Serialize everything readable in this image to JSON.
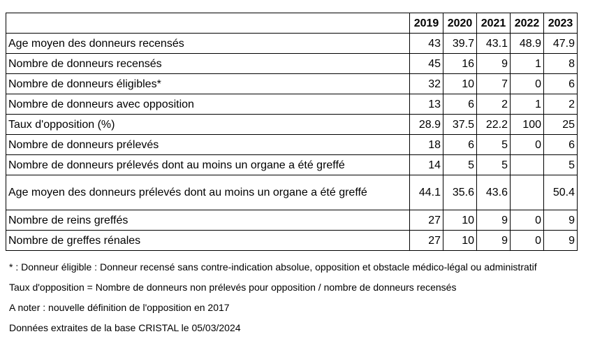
{
  "table": {
    "years": [
      "2019",
      "2020",
      "2021",
      "2022",
      "2023"
    ],
    "rows": [
      {
        "label": "Age moyen des donneurs recensés",
        "values": [
          "43",
          "39.7",
          "43.1",
          "48.9",
          "47.9"
        ]
      },
      {
        "label": "Nombre de donneurs recensés",
        "values": [
          "45",
          "16",
          "9",
          "1",
          "8"
        ]
      },
      {
        "label": "Nombre de donneurs éligibles*",
        "values": [
          "32",
          "10",
          "7",
          "0",
          "6"
        ]
      },
      {
        "label": "Nombre de donneurs avec opposition",
        "values": [
          "13",
          "6",
          "2",
          "1",
          "2"
        ]
      },
      {
        "label": "Taux d'opposition (%)",
        "values": [
          "28.9",
          "37.5",
          "22.2",
          "100",
          "25"
        ]
      },
      {
        "label": "Nombre de donneurs prélevés",
        "values": [
          "18",
          "6",
          "5",
          "0",
          "6"
        ]
      },
      {
        "label": "Nombre de donneurs prélevés dont au moins un organe a été greffé",
        "values": [
          "14",
          "5",
          "5",
          "",
          "5"
        ]
      },
      {
        "label": "Age moyen des donneurs prélevés dont au moins un organe a été greffé",
        "values": [
          "44.1",
          "35.6",
          "43.6",
          "",
          "50.4"
        ]
      },
      {
        "label": "Nombre de reins greffés",
        "values": [
          "27",
          "10",
          "9",
          "0",
          "9"
        ]
      },
      {
        "label": "Nombre de greffes rénales",
        "values": [
          "27",
          "10",
          "9",
          "0",
          "9"
        ]
      }
    ]
  },
  "notes": [
    "* : Donneur éligible : Donneur recensé sans contre-indication absolue, opposition et obstacle médico-légal ou administratif",
    "Taux d'opposition =  Nombre de donneurs non prélevés pour opposition / nombre de donneurs recensés",
    "A noter : nouvelle définition de l'opposition en 2017",
    "Données extraites de la base CRISTAL le 05/03/2024"
  ]
}
